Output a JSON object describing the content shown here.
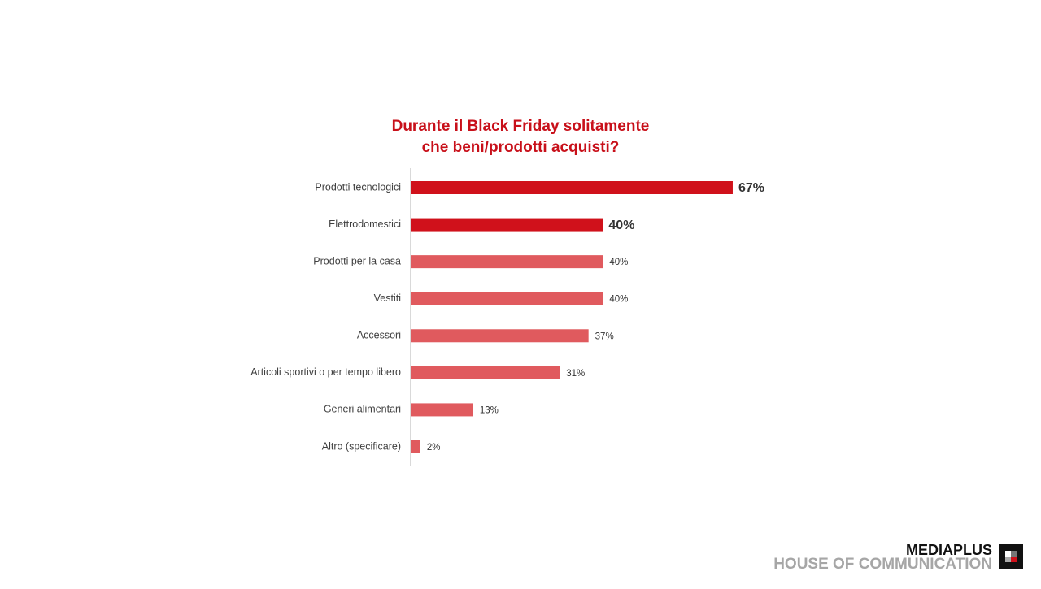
{
  "chart_data": {
    "type": "bar",
    "orientation": "horizontal",
    "title": [
      "Durante il Black Friday solitamente",
      "che beni/prodotti acquisti?"
    ],
    "categories": [
      "Prodotti tecnologici",
      "Elettrodomestici",
      "Prodotti per la casa",
      "Vestiti",
      "Accessori",
      "Articoli sportivi o per tempo libero",
      "Generi alimentari",
      "Altro (specificare)"
    ],
    "values": [
      67,
      40,
      40,
      40,
      37,
      31,
      13,
      2
    ],
    "value_labels": [
      "67%",
      "40%",
      "40%",
      "40%",
      "37%",
      "31%",
      "13%",
      "2%"
    ],
    "colors": [
      "#d0111b",
      "#d0111b",
      "#e05a5e",
      "#e05a5e",
      "#e05a5e",
      "#e05a5e",
      "#e05a5e",
      "#e05a5e"
    ]
  },
  "logo": {
    "name": "MEDIAPLUS",
    "tagline": "HOUSE OF COMMUNICATION"
  }
}
